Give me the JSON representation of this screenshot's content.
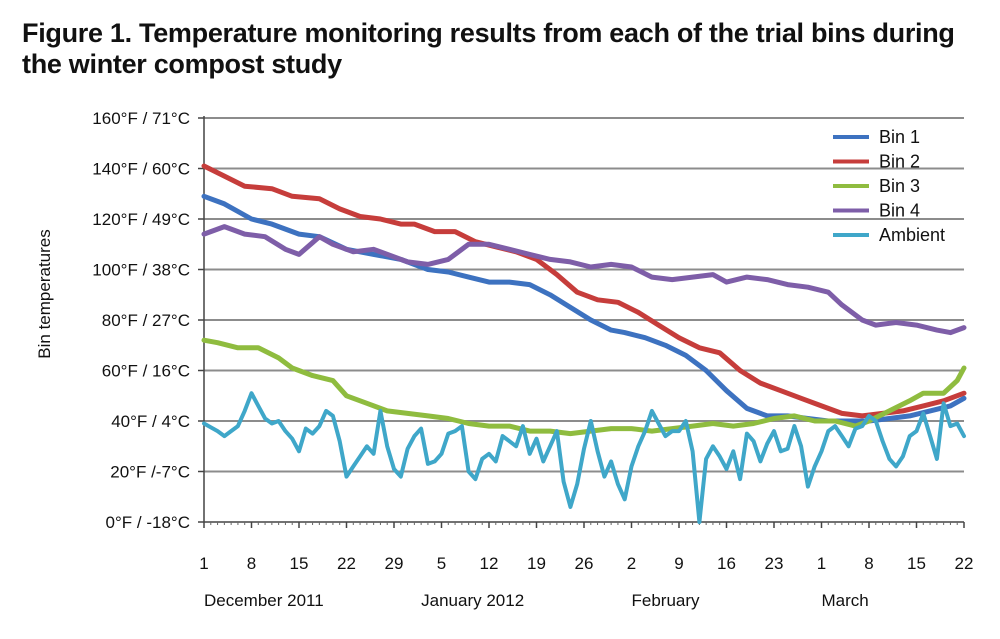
{
  "figure": {
    "title": "Figure 1. Temperature monitoring results from each of the trial bins during the winter compost study"
  },
  "chart_data": {
    "type": "line",
    "title": "Figure 1. Temperature monitoring results from each of the trial bins during the winter compost study",
    "ylabel": "Bin temperatures",
    "xlabel": "",
    "ylim": [
      0,
      160
    ],
    "xlim": [
      1,
      113
    ],
    "grid": "horizontal",
    "legend_position": "top-right",
    "y_ticks": [
      {
        "value": 0,
        "label": "0°F / -18°C"
      },
      {
        "value": 20,
        "label": "20°F /-7°C"
      },
      {
        "value": 40,
        "label": "40°F / 4°C"
      },
      {
        "value": 60,
        "label": "60°F / 16°C"
      },
      {
        "value": 80,
        "label": "80°F / 27°C"
      },
      {
        "value": 100,
        "label": "100°F / 38°C"
      },
      {
        "value": 120,
        "label": "120°F / 49°C"
      },
      {
        "value": 140,
        "label": "140°F / 60°C"
      },
      {
        "value": 160,
        "label": "160°F / 71°C"
      }
    ],
    "x_ticks": [
      {
        "day": 1,
        "label": "1"
      },
      {
        "day": 8,
        "label": "8"
      },
      {
        "day": 15,
        "label": "15"
      },
      {
        "day": 22,
        "label": "22"
      },
      {
        "day": 29,
        "label": "29"
      },
      {
        "day": 36,
        "label": "5"
      },
      {
        "day": 43,
        "label": "12"
      },
      {
        "day": 50,
        "label": "19"
      },
      {
        "day": 57,
        "label": "26"
      },
      {
        "day": 64,
        "label": "2"
      },
      {
        "day": 71,
        "label": "9"
      },
      {
        "day": 78,
        "label": "16"
      },
      {
        "day": 85,
        "label": "23"
      },
      {
        "day": 92,
        "label": "1"
      },
      {
        "day": 99,
        "label": "8"
      },
      {
        "day": 106,
        "label": "15"
      },
      {
        "day": 113,
        "label": "22"
      }
    ],
    "month_labels": [
      {
        "day": 1,
        "label": "December 2011"
      },
      {
        "day": 33,
        "label": "January 2012"
      },
      {
        "day": 64,
        "label": "February"
      },
      {
        "day": 92,
        "label": "March"
      }
    ],
    "series": [
      {
        "name": "Bin 1",
        "color": "#3d72c0",
        "points": [
          [
            1,
            129
          ],
          [
            4,
            126
          ],
          [
            8,
            120
          ],
          [
            11,
            118
          ],
          [
            15,
            114
          ],
          [
            18,
            113
          ],
          [
            22,
            108
          ],
          [
            26,
            106
          ],
          [
            30,
            104
          ],
          [
            34,
            100
          ],
          [
            37,
            99
          ],
          [
            40,
            97
          ],
          [
            43,
            95
          ],
          [
            46,
            95
          ],
          [
            49,
            94
          ],
          [
            52,
            90
          ],
          [
            55,
            85
          ],
          [
            58,
            80
          ],
          [
            61,
            76
          ],
          [
            63,
            75
          ],
          [
            66,
            73
          ],
          [
            69,
            70
          ],
          [
            72,
            66
          ],
          [
            75,
            60
          ],
          [
            78,
            52
          ],
          [
            81,
            45
          ],
          [
            84,
            42
          ],
          [
            87,
            42
          ],
          [
            90,
            41
          ],
          [
            93,
            40
          ],
          [
            96,
            40
          ],
          [
            99,
            40
          ],
          [
            102,
            41
          ],
          [
            105,
            42
          ],
          [
            108,
            44
          ],
          [
            111,
            46
          ],
          [
            113,
            49
          ]
        ]
      },
      {
        "name": "Bin 2",
        "color": "#c63d3b",
        "points": [
          [
            1,
            141
          ],
          [
            4,
            137
          ],
          [
            7,
            133
          ],
          [
            11,
            132
          ],
          [
            14,
            129
          ],
          [
            18,
            128
          ],
          [
            21,
            124
          ],
          [
            24,
            121
          ],
          [
            27,
            120
          ],
          [
            30,
            118
          ],
          [
            32,
            118
          ],
          [
            35,
            115
          ],
          [
            38,
            115
          ],
          [
            41,
            111
          ],
          [
            44,
            109
          ],
          [
            47,
            107
          ],
          [
            50,
            104
          ],
          [
            53,
            98
          ],
          [
            56,
            91
          ],
          [
            59,
            88
          ],
          [
            62,
            87
          ],
          [
            65,
            83
          ],
          [
            68,
            78
          ],
          [
            71,
            73
          ],
          [
            74,
            69
          ],
          [
            77,
            67
          ],
          [
            80,
            60
          ],
          [
            83,
            55
          ],
          [
            86,
            52
          ],
          [
            89,
            49
          ],
          [
            92,
            46
          ],
          [
            95,
            43
          ],
          [
            98,
            42
          ],
          [
            101,
            43
          ],
          [
            104,
            44
          ],
          [
            107,
            46
          ],
          [
            110,
            48
          ],
          [
            113,
            51
          ]
        ]
      },
      {
        "name": "Bin 3",
        "color": "#8fbc3f",
        "points": [
          [
            1,
            72
          ],
          [
            3,
            71
          ],
          [
            6,
            69
          ],
          [
            9,
            69
          ],
          [
            12,
            65
          ],
          [
            14,
            61
          ],
          [
            17,
            58
          ],
          [
            20,
            56
          ],
          [
            22,
            50
          ],
          [
            25,
            47
          ],
          [
            28,
            44
          ],
          [
            31,
            43
          ],
          [
            34,
            42
          ],
          [
            37,
            41
          ],
          [
            40,
            39
          ],
          [
            43,
            38
          ],
          [
            46,
            38
          ],
          [
            49,
            36
          ],
          [
            52,
            36
          ],
          [
            55,
            35
          ],
          [
            58,
            36
          ],
          [
            61,
            37
          ],
          [
            64,
            37
          ],
          [
            67,
            36
          ],
          [
            70,
            37
          ],
          [
            73,
            38
          ],
          [
            76,
            39
          ],
          [
            79,
            38
          ],
          [
            82,
            39
          ],
          [
            85,
            41
          ],
          [
            88,
            42
          ],
          [
            91,
            40
          ],
          [
            94,
            40
          ],
          [
            97,
            38
          ],
          [
            99,
            40
          ],
          [
            102,
            44
          ],
          [
            105,
            48
          ],
          [
            107,
            51
          ],
          [
            110,
            51
          ],
          [
            112,
            56
          ],
          [
            113,
            61
          ]
        ]
      },
      {
        "name": "Bin 4",
        "color": "#7e5ea8",
        "points": [
          [
            1,
            114
          ],
          [
            4,
            117
          ],
          [
            7,
            114
          ],
          [
            10,
            113
          ],
          [
            13,
            108
          ],
          [
            15,
            106
          ],
          [
            18,
            113
          ],
          [
            20,
            110
          ],
          [
            23,
            107
          ],
          [
            26,
            108
          ],
          [
            29,
            105
          ],
          [
            31,
            103
          ],
          [
            34,
            102
          ],
          [
            37,
            104
          ],
          [
            40,
            110
          ],
          [
            43,
            110
          ],
          [
            46,
            108
          ],
          [
            49,
            106
          ],
          [
            52,
            104
          ],
          [
            55,
            103
          ],
          [
            58,
            101
          ],
          [
            61,
            102
          ],
          [
            64,
            101
          ],
          [
            67,
            97
          ],
          [
            70,
            96
          ],
          [
            73,
            97
          ],
          [
            76,
            98
          ],
          [
            78,
            95
          ],
          [
            81,
            97
          ],
          [
            84,
            96
          ],
          [
            87,
            94
          ],
          [
            90,
            93
          ],
          [
            93,
            91
          ],
          [
            95,
            86
          ],
          [
            98,
            80
          ],
          [
            100,
            78
          ],
          [
            103,
            79
          ],
          [
            106,
            78
          ],
          [
            109,
            76
          ],
          [
            111,
            75
          ],
          [
            113,
            77
          ]
        ]
      },
      {
        "name": "Ambient",
        "color": "#3fa7c9",
        "points": [
          [
            1,
            39
          ],
          [
            3,
            36
          ],
          [
            4,
            34
          ],
          [
            5,
            36
          ],
          [
            6,
            38
          ],
          [
            7,
            44
          ],
          [
            8,
            51
          ],
          [
            9,
            46
          ],
          [
            10,
            41
          ],
          [
            11,
            39
          ],
          [
            12,
            40
          ],
          [
            13,
            36
          ],
          [
            14,
            33
          ],
          [
            15,
            28
          ],
          [
            16,
            37
          ],
          [
            17,
            35
          ],
          [
            18,
            38
          ],
          [
            19,
            44
          ],
          [
            20,
            42
          ],
          [
            21,
            32
          ],
          [
            22,
            18
          ],
          [
            23,
            22
          ],
          [
            24,
            26
          ],
          [
            25,
            30
          ],
          [
            26,
            27
          ],
          [
            27,
            44
          ],
          [
            28,
            30
          ],
          [
            29,
            21
          ],
          [
            30,
            18
          ],
          [
            31,
            29
          ],
          [
            32,
            34
          ],
          [
            33,
            37
          ],
          [
            34,
            23
          ],
          [
            35,
            24
          ],
          [
            36,
            27
          ],
          [
            37,
            35
          ],
          [
            38,
            36
          ],
          [
            39,
            38
          ],
          [
            40,
            20
          ],
          [
            41,
            17
          ],
          [
            42,
            25
          ],
          [
            43,
            27
          ],
          [
            44,
            24
          ],
          [
            45,
            34
          ],
          [
            46,
            32
          ],
          [
            47,
            30
          ],
          [
            48,
            38
          ],
          [
            49,
            27
          ],
          [
            50,
            33
          ],
          [
            51,
            24
          ],
          [
            52,
            30
          ],
          [
            53,
            36
          ],
          [
            54,
            16
          ],
          [
            55,
            6
          ],
          [
            56,
            15
          ],
          [
            57,
            29
          ],
          [
            58,
            40
          ],
          [
            59,
            28
          ],
          [
            60,
            18
          ],
          [
            61,
            24
          ],
          [
            62,
            15
          ],
          [
            63,
            9
          ],
          [
            64,
            22
          ],
          [
            65,
            30
          ],
          [
            66,
            36
          ],
          [
            67,
            44
          ],
          [
            68,
            39
          ],
          [
            69,
            34
          ],
          [
            70,
            36
          ],
          [
            71,
            36
          ],
          [
            72,
            40
          ],
          [
            73,
            28
          ],
          [
            74,
            0
          ],
          [
            75,
            25
          ],
          [
            76,
            30
          ],
          [
            77,
            26
          ],
          [
            78,
            21
          ],
          [
            79,
            28
          ],
          [
            80,
            17
          ],
          [
            81,
            35
          ],
          [
            82,
            32
          ],
          [
            83,
            24
          ],
          [
            84,
            31
          ],
          [
            85,
            36
          ],
          [
            86,
            28
          ],
          [
            87,
            29
          ],
          [
            88,
            38
          ],
          [
            89,
            30
          ],
          [
            90,
            14
          ],
          [
            91,
            22
          ],
          [
            92,
            28
          ],
          [
            93,
            36
          ],
          [
            94,
            38
          ],
          [
            95,
            34
          ],
          [
            96,
            30
          ],
          [
            97,
            37
          ],
          [
            98,
            38
          ],
          [
            99,
            42
          ],
          [
            100,
            40
          ],
          [
            101,
            32
          ],
          [
            102,
            25
          ],
          [
            103,
            22
          ],
          [
            104,
            26
          ],
          [
            105,
            34
          ],
          [
            106,
            36
          ],
          [
            107,
            43
          ],
          [
            108,
            34
          ],
          [
            109,
            25
          ],
          [
            110,
            47
          ],
          [
            111,
            38
          ],
          [
            112,
            39
          ],
          [
            113,
            34
          ]
        ]
      }
    ]
  }
}
